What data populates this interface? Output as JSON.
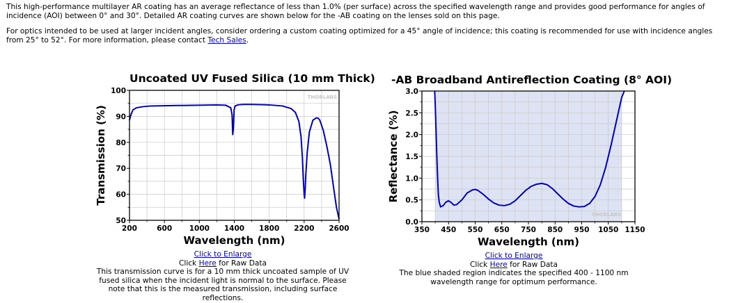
{
  "intro": {
    "p1": "This high-performance multilayer AR coating has an average reflectance of less than 1.0% (per surface) across the specified wavelength range and provides good performance for angles of incidence (AOI) between 0° and 30°. Detailed AR coating curves are shown below for the -AB coating on the lenses sold on this page.",
    "p2_text": "For optics intended to be used at larger incident angles, consider ordering a custom coating optimized for a 45° angle of incidence; this coating is recommended for use with incidence angles from 25° to 52°. For more information, please contact ",
    "p2_link": "Tech Sales",
    "p2_end": "."
  },
  "left": {
    "enlarge_link": "Click to Enlarge",
    "raw_prefix": "Click ",
    "raw_link": "Here",
    "raw_suffix": " for Raw Data",
    "caption": "This transmission curve is for a 10 mm thick uncoated sample of UV fused silica when the incident light is normal to the surface. Please note that this is the measured transmission, including surface reflections.",
    "watermark": "THORLABS"
  },
  "right": {
    "enlarge_link": "Click to Enlarge",
    "raw_prefix": "Click ",
    "raw_link": "Here",
    "raw_suffix": " for Raw Data",
    "caption": "The blue shaded region indicates the specified 400 - 1100 nm wavelength range for optimum performance.",
    "watermark": "THORLABS"
  },
  "colors": {
    "curve": "#0000bb",
    "shade": "#dde3f2",
    "grid": "#c8c8c8",
    "link": "#0000cc"
  },
  "chart_data": [
    {
      "type": "line",
      "title": "Uncoated UV Fused Silica (10 mm Thick)",
      "xlabel": "Wavelength (nm)",
      "ylabel": "Transmission (%)",
      "xlim": [
        200,
        2600
      ],
      "ylim": [
        50,
        100
      ],
      "xticks": [
        "200",
        "600",
        "1000",
        "1400",
        "1800",
        "2200",
        "2600"
      ],
      "yticks": [
        "50",
        "60",
        "70",
        "80",
        "90",
        "100"
      ],
      "grid": true,
      "series": [
        {
          "x": [
            200,
            215,
            240,
            280,
            350,
            450,
            600,
            800,
            1000,
            1200,
            1300,
            1360,
            1375,
            1382,
            1390,
            1398,
            1410,
            1440,
            1500,
            1600,
            1800,
            1950,
            2050,
            2100,
            2140,
            2165,
            2180,
            2190,
            2200,
            2205,
            2212,
            2220,
            2235,
            2260,
            2300,
            2340,
            2360,
            2380,
            2420,
            2460,
            2500,
            2540,
            2570,
            2600
          ],
          "y": [
            88.5,
            90.5,
            92.5,
            93.3,
            93.7,
            94.0,
            94.1,
            94.2,
            94.3,
            94.4,
            94.3,
            93.3,
            90.5,
            83,
            85.5,
            92.5,
            94.0,
            94.4,
            94.6,
            94.6,
            94.4,
            94.0,
            93.0,
            91.5,
            88.0,
            82.0,
            74.0,
            66.0,
            60.0,
            58.5,
            62.0,
            68.0,
            76.0,
            84.0,
            88.5,
            89.4,
            89.3,
            88.5,
            84.5,
            78.5,
            71.5,
            62.0,
            55.0,
            50.5
          ]
        }
      ]
    },
    {
      "type": "line",
      "title": "-AB Broadband Antireflection Coating (8° AOI)",
      "xlabel": "Wavelength (nm)",
      "ylabel": "Reflectance (%)",
      "xlim": [
        350,
        1150
      ],
      "ylim": [
        0,
        3
      ],
      "xticks": [
        "350",
        "450",
        "550",
        "650",
        "750",
        "850",
        "950",
        "1050",
        "1150"
      ],
      "yticks": [
        "0.0",
        "0.5",
        "1.0",
        "1.5",
        "2.0",
        "2.5",
        "3.0"
      ],
      "shaded_range": [
        400,
        1100
      ],
      "grid": true,
      "series": [
        {
          "x": [
            398,
            400,
            402,
            404,
            406,
            408,
            410,
            412,
            415,
            420,
            430,
            440,
            450,
            460,
            470,
            480,
            500,
            520,
            540,
            550,
            560,
            580,
            600,
            620,
            640,
            660,
            680,
            700,
            720,
            740,
            760,
            780,
            800,
            820,
            840,
            860,
            880,
            900,
            920,
            940,
            960,
            980,
            1000,
            1020,
            1040,
            1060,
            1080,
            1100,
            1110
          ],
          "y": [
            3.0,
            2.7,
            2.3,
            1.9,
            1.5,
            1.15,
            0.85,
            0.6,
            0.45,
            0.34,
            0.37,
            0.45,
            0.48,
            0.44,
            0.38,
            0.39,
            0.5,
            0.66,
            0.73,
            0.74,
            0.72,
            0.63,
            0.52,
            0.43,
            0.38,
            0.37,
            0.4,
            0.48,
            0.6,
            0.72,
            0.81,
            0.86,
            0.88,
            0.85,
            0.76,
            0.64,
            0.52,
            0.42,
            0.36,
            0.34,
            0.35,
            0.42,
            0.58,
            0.85,
            1.25,
            1.75,
            2.3,
            2.85,
            3.05
          ]
        }
      ]
    }
  ]
}
